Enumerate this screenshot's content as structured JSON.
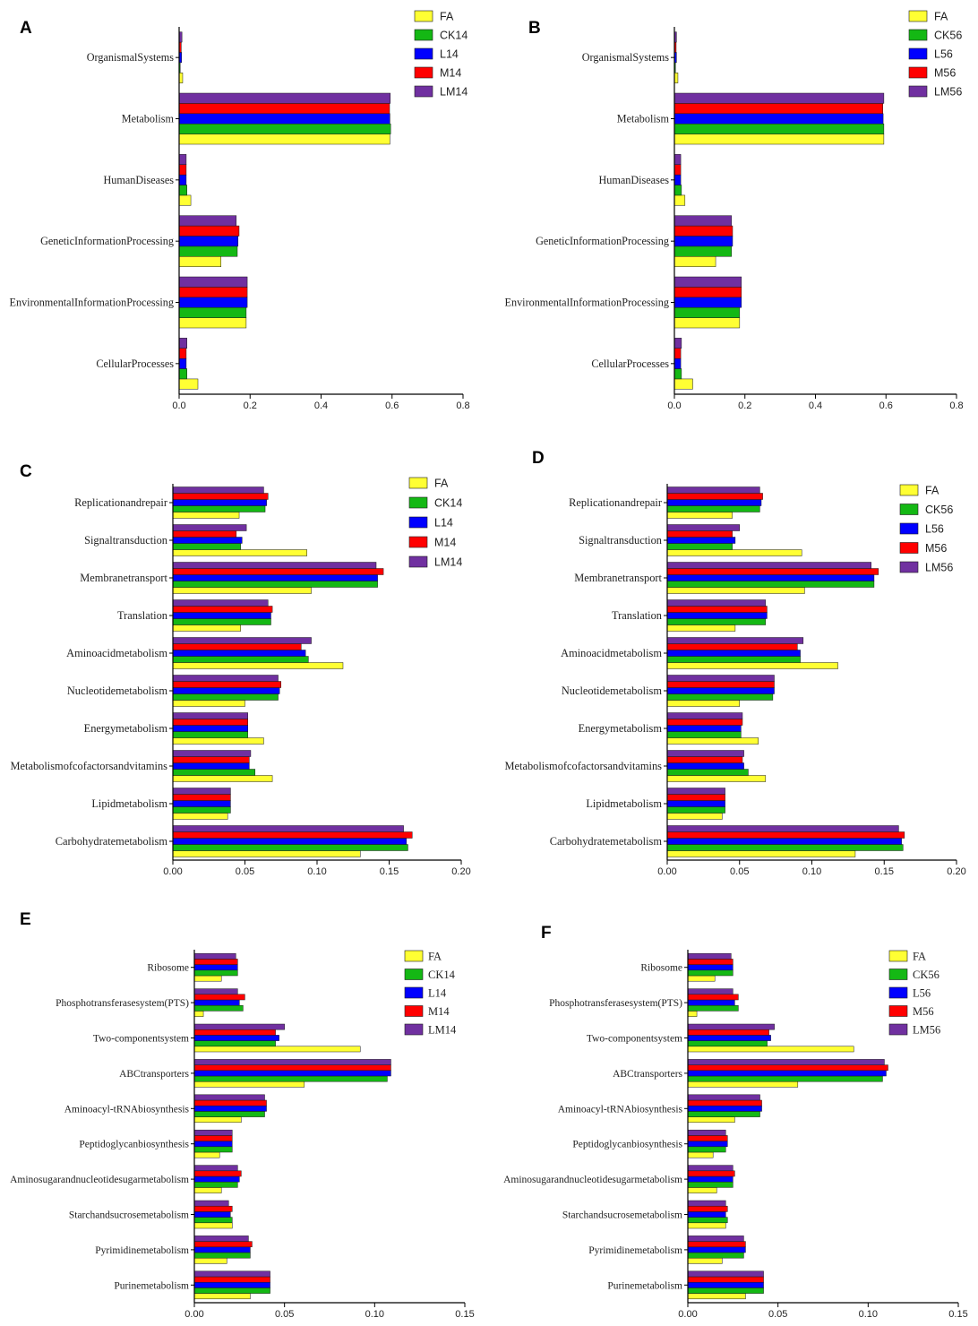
{
  "chart_data": [
    {
      "panel": "A",
      "type": "bar",
      "orientation": "horizontal",
      "legend": "top-right",
      "categories": [
        "OrganismalSystems",
        "Metabolism",
        "HumanDiseases",
        "GeneticInformationProcessing",
        "EnvironmentalInformationProcessing",
        "CellularProcesses"
      ],
      "series": [
        {
          "name": "FA",
          "color": "#FFFF33",
          "values": [
            0.01,
            0.594,
            0.033,
            0.118,
            0.189,
            0.053
          ]
        },
        {
          "name": "CK14",
          "color": "#14B814",
          "values": [
            0.003,
            0.596,
            0.022,
            0.164,
            0.189,
            0.022
          ]
        },
        {
          "name": "L14",
          "color": "#0000FF",
          "values": [
            0.007,
            0.594,
            0.02,
            0.166,
            0.192,
            0.02
          ]
        },
        {
          "name": "M14",
          "color": "#FF0000",
          "values": [
            0.006,
            0.593,
            0.02,
            0.169,
            0.192,
            0.02
          ]
        },
        {
          "name": "LM14",
          "color": "#7030A0",
          "values": [
            0.008,
            0.595,
            0.02,
            0.161,
            0.192,
            0.022
          ]
        }
      ],
      "xlim": [
        0,
        0.8
      ],
      "xticks": [
        "0.0",
        "0.2",
        "0.4",
        "0.6",
        "0.8"
      ]
    },
    {
      "panel": "B",
      "type": "bar",
      "orientation": "horizontal",
      "legend": "top-right",
      "categories": [
        "OrganismalSystems",
        "Metabolism",
        "HumanDiseases",
        "GeneticInformationProcessing",
        "EnvironmentalInformationProcessing",
        "CellularProcesses"
      ],
      "series": [
        {
          "name": "FA",
          "color": "#FFFF33",
          "values": [
            0.01,
            0.594,
            0.03,
            0.117,
            0.185,
            0.052
          ]
        },
        {
          "name": "CK56",
          "color": "#14B814",
          "values": [
            0.003,
            0.594,
            0.02,
            0.162,
            0.185,
            0.02
          ]
        },
        {
          "name": "L56",
          "color": "#0000FF",
          "values": [
            0.006,
            0.592,
            0.018,
            0.165,
            0.19,
            0.018
          ]
        },
        {
          "name": "M56",
          "color": "#FF0000",
          "values": [
            0.005,
            0.591,
            0.018,
            0.165,
            0.19,
            0.018
          ]
        },
        {
          "name": "LM56",
          "color": "#7030A0",
          "values": [
            0.006,
            0.594,
            0.018,
            0.162,
            0.19,
            0.02
          ]
        }
      ],
      "xlim": [
        0,
        0.8
      ],
      "xticks": [
        "0.0",
        "0.2",
        "0.4",
        "0.6",
        "0.8"
      ]
    },
    {
      "panel": "C",
      "type": "bar",
      "orientation": "horizontal",
      "legend": "top-right",
      "categories": [
        "Replicationandrepair",
        "Signaltransduction",
        "Membranetransport",
        "Translation",
        "Aminoacidmetabolism",
        "Nucleotidemetabolism",
        "Energymetabolism",
        "Metabolismofcofactorsandvitamins",
        "Lipidmetabolism",
        "Carbohydratemetabolism"
      ],
      "series": [
        {
          "name": "FA",
          "color": "#FFFF33",
          "values": [
            0.046,
            0.093,
            0.096,
            0.047,
            0.118,
            0.05,
            0.063,
            0.069,
            0.038,
            0.13
          ]
        },
        {
          "name": "CK14",
          "color": "#14B814",
          "values": [
            0.064,
            0.047,
            0.142,
            0.068,
            0.094,
            0.073,
            0.052,
            0.057,
            0.04,
            0.163
          ]
        },
        {
          "name": "L14",
          "color": "#0000FF",
          "values": [
            0.065,
            0.048,
            0.142,
            0.068,
            0.092,
            0.074,
            0.052,
            0.053,
            0.04,
            0.162
          ]
        },
        {
          "name": "M14",
          "color": "#FF0000",
          "values": [
            0.066,
            0.044,
            0.146,
            0.069,
            0.089,
            0.075,
            0.052,
            0.053,
            0.04,
            0.166
          ]
        },
        {
          "name": "LM14",
          "color": "#7030A0",
          "values": [
            0.063,
            0.051,
            0.141,
            0.066,
            0.096,
            0.073,
            0.052,
            0.054,
            0.04,
            0.16
          ]
        }
      ],
      "xlim": [
        0,
        0.2
      ],
      "xticks": [
        "0.00",
        "0.05",
        "0.10",
        "0.15",
        "0.20"
      ]
    },
    {
      "panel": "D",
      "type": "bar",
      "orientation": "horizontal",
      "legend": "top-right",
      "categories": [
        "Replicationandrepair",
        "Signaltransduction",
        "Membranetransport",
        "Translation",
        "Aminoacidmetabolism",
        "Nucleotidemetabolism",
        "Energymetabolism",
        "Metabolismofcofactorsandvitamins",
        "Lipidmetabolism",
        "Carbohydratemetabolism"
      ],
      "series": [
        {
          "name": "FA",
          "color": "#FFFF33",
          "values": [
            0.045,
            0.093,
            0.095,
            0.047,
            0.118,
            0.05,
            0.063,
            0.068,
            0.038,
            0.13
          ]
        },
        {
          "name": "CK56",
          "color": "#14B814",
          "values": [
            0.064,
            0.045,
            0.143,
            0.068,
            0.092,
            0.073,
            0.051,
            0.056,
            0.04,
            0.163
          ]
        },
        {
          "name": "L56",
          "color": "#0000FF",
          "values": [
            0.065,
            0.047,
            0.143,
            0.069,
            0.092,
            0.074,
            0.051,
            0.053,
            0.04,
            0.162
          ]
        },
        {
          "name": "M56",
          "color": "#FF0000",
          "values": [
            0.066,
            0.045,
            0.146,
            0.069,
            0.09,
            0.074,
            0.052,
            0.052,
            0.04,
            0.164
          ]
        },
        {
          "name": "LM56",
          "color": "#7030A0",
          "values": [
            0.064,
            0.05,
            0.141,
            0.068,
            0.094,
            0.074,
            0.052,
            0.053,
            0.04,
            0.16
          ]
        }
      ],
      "xlim": [
        0,
        0.2
      ],
      "xticks": [
        "0.00",
        "0.05",
        "0.10",
        "0.15",
        "0.20"
      ]
    },
    {
      "panel": "E",
      "type": "bar",
      "orientation": "horizontal",
      "legend": "top-right",
      "categories": [
        "Ribosome",
        "Phosphotransferasesystem(PTS)",
        "Two-componentsystem",
        "ABCtransporters",
        "Aminoacyl-tRNAbiosynthesis",
        "Peptidoglycanbiosynthesis",
        "Aminosugarandnucleotidesugarmetabolism",
        "Starchandsucrosemetabolism",
        "Pyrimidinemetabolism",
        "Purinemetabolism"
      ],
      "series": [
        {
          "name": "FA",
          "color": "#FFFF33",
          "values": [
            0.015,
            0.005,
            0.092,
            0.061,
            0.026,
            0.014,
            0.015,
            0.021,
            0.018,
            0.031
          ]
        },
        {
          "name": "CK14",
          "color": "#14B814",
          "values": [
            0.024,
            0.027,
            0.045,
            0.107,
            0.039,
            0.021,
            0.024,
            0.021,
            0.031,
            0.042
          ]
        },
        {
          "name": "L14",
          "color": "#0000FF",
          "values": [
            0.024,
            0.025,
            0.047,
            0.109,
            0.04,
            0.021,
            0.025,
            0.02,
            0.031,
            0.042
          ]
        },
        {
          "name": "M14",
          "color": "#FF0000",
          "values": [
            0.024,
            0.028,
            0.045,
            0.109,
            0.04,
            0.021,
            0.026,
            0.021,
            0.032,
            0.042
          ]
        },
        {
          "name": "LM14",
          "color": "#7030A0",
          "values": [
            0.023,
            0.024,
            0.05,
            0.109,
            0.039,
            0.021,
            0.024,
            0.019,
            0.03,
            0.042
          ]
        }
      ],
      "xlim": [
        0,
        0.15
      ],
      "xticks": [
        "0.00",
        "0.05",
        "0.10",
        "0.15"
      ]
    },
    {
      "panel": "F",
      "type": "bar",
      "orientation": "horizontal",
      "legend": "top-right",
      "categories": [
        "Ribosome",
        "Phosphotransferasesystem(PTS)",
        "Two-componentsystem",
        "ABCtransporters",
        "Aminoacyl-tRNAbiosynthesis",
        "Peptidoglycanbiosynthesis",
        "Aminosugarandnucleotidesugarmetabolism",
        "Starchandsucrosemetabolism",
        "Pyrimidinemetabolism",
        "Purinemetabolism"
      ],
      "series": [
        {
          "name": "FA",
          "color": "#FFFF33",
          "values": [
            0.015,
            0.005,
            0.092,
            0.061,
            0.026,
            0.014,
            0.016,
            0.021,
            0.019,
            0.032
          ]
        },
        {
          "name": "CK56",
          "color": "#14B814",
          "values": [
            0.025,
            0.028,
            0.044,
            0.108,
            0.04,
            0.021,
            0.025,
            0.022,
            0.031,
            0.042
          ]
        },
        {
          "name": "L56",
          "color": "#0000FF",
          "values": [
            0.025,
            0.026,
            0.046,
            0.11,
            0.041,
            0.022,
            0.025,
            0.021,
            0.032,
            0.042
          ]
        },
        {
          "name": "M56",
          "color": "#FF0000",
          "values": [
            0.025,
            0.028,
            0.045,
            0.111,
            0.041,
            0.022,
            0.026,
            0.022,
            0.032,
            0.042
          ]
        },
        {
          "name": "LM56",
          "color": "#7030A0",
          "values": [
            0.024,
            0.025,
            0.048,
            0.109,
            0.04,
            0.021,
            0.025,
            0.021,
            0.031,
            0.042
          ]
        }
      ],
      "xlim": [
        0,
        0.15
      ],
      "xticks": [
        "0.00",
        "0.05",
        "0.10",
        "0.15"
      ]
    }
  ]
}
